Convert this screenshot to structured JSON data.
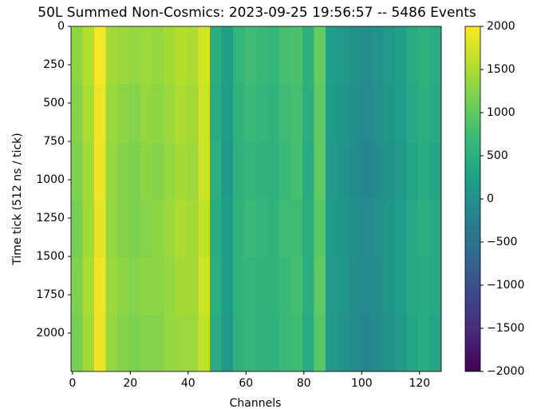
{
  "chart_data": {
    "type": "heatmap",
    "title": "50L Summed Non-Cosmics: 2023-09-25 19:56:57 -- 5486 Events",
    "x_label": "Channels",
    "y_label": "Time tick (512 ns / tick)",
    "colormap": "viridis",
    "xlim": [
      -0.5,
      127.5
    ],
    "ylim": [
      2250,
      0
    ],
    "xticks": [
      0,
      20,
      40,
      60,
      80,
      100,
      120
    ],
    "yticks": [
      0,
      250,
      500,
      750,
      1000,
      1250,
      1500,
      1750,
      2000
    ],
    "clim": [
      -2000,
      2000
    ],
    "cticks": [
      {
        "value": -2000,
        "label": "−2000"
      },
      {
        "value": -1500,
        "label": "−1500"
      },
      {
        "value": -1000,
        "label": "−1000"
      },
      {
        "value": -500,
        "label": "−500"
      },
      0,
      500,
      1000,
      1500,
      2000
    ],
    "xbins": [
      -0.5,
      3.5,
      7.5,
      11.5,
      15.5,
      19.5,
      23.5,
      27.5,
      31.5,
      35.5,
      39.5,
      43.5,
      47.5,
      51.5,
      55.5,
      59.5,
      63.5,
      67.5,
      71.5,
      75.5,
      79.5,
      83.5,
      87.5,
      91.5,
      95.5,
      99.5,
      103.5,
      107.5,
      111.5,
      115.5,
      119.5,
      123.5,
      127.5
    ],
    "ybins": [
      0,
      375,
      750,
      1125,
      1500,
      1875,
      2250
    ],
    "z": [
      [
        1300,
        1550,
        1950,
        1450,
        1400,
        1350,
        1400,
        1350,
        1450,
        1550,
        1500,
        1750,
        500,
        250,
        650,
        750,
        700,
        650,
        800,
        850,
        550,
        1050,
        250,
        150,
        50,
        -50,
        50,
        150,
        250,
        450,
        550,
        450
      ],
      [
        1250,
        1500,
        1900,
        1400,
        1300,
        1250,
        1350,
        1300,
        1400,
        1500,
        1450,
        1700,
        450,
        200,
        600,
        700,
        650,
        600,
        750,
        800,
        500,
        1000,
        200,
        100,
        0,
        -100,
        0,
        100,
        200,
        400,
        500,
        400
      ],
      [
        1200,
        1450,
        1900,
        1350,
        1250,
        1200,
        1300,
        1250,
        1350,
        1450,
        1400,
        1700,
        500,
        150,
        550,
        650,
        600,
        550,
        700,
        800,
        450,
        1000,
        150,
        50,
        -50,
        -150,
        -50,
        50,
        150,
        350,
        450,
        350
      ],
      [
        1150,
        1450,
        1850,
        1350,
        1250,
        1200,
        1250,
        1300,
        1400,
        1500,
        1450,
        1650,
        450,
        200,
        600,
        700,
        650,
        600,
        750,
        750,
        500,
        950,
        200,
        100,
        0,
        -100,
        0,
        100,
        200,
        400,
        500,
        400
      ],
      [
        1200,
        1500,
        1900,
        1400,
        1300,
        1250,
        1300,
        1300,
        1350,
        1450,
        1450,
        1700,
        500,
        200,
        600,
        650,
        600,
        600,
        700,
        800,
        500,
        1000,
        150,
        100,
        -50,
        -100,
        -50,
        100,
        200,
        400,
        450,
        400
      ],
      [
        1150,
        1450,
        1900,
        1350,
        1250,
        1200,
        1250,
        1250,
        1350,
        1400,
        1400,
        1650,
        450,
        150,
        550,
        650,
        600,
        550,
        700,
        750,
        450,
        950,
        150,
        50,
        -50,
        -150,
        -50,
        50,
        150,
        350,
        450,
        350
      ]
    ]
  }
}
